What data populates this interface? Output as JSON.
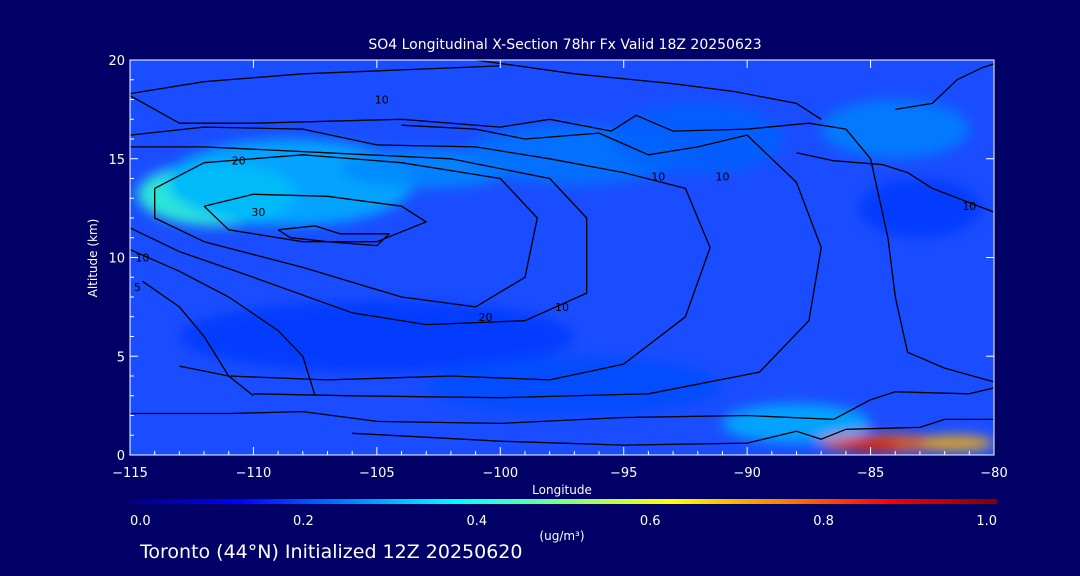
{
  "chart_data": {
    "type": "heatmap",
    "title": "SO4 Longitudinal X-Section 78hr  Fx Valid 18Z 20250623",
    "xlabel": "Longitude",
    "ylabel": "Altitude (km)",
    "xlim": [
      -115,
      -80
    ],
    "ylim": [
      0,
      20
    ],
    "x_ticks": [
      -115,
      -110,
      -105,
      -100,
      -95,
      -90,
      -85,
      -80
    ],
    "x_tick_labels": [
      "−115",
      "−110",
      "−105",
      "−100",
      "−95",
      "−90",
      "−85",
      "−80"
    ],
    "y_ticks": [
      0,
      5,
      10,
      15,
      20
    ],
    "y_tick_labels": [
      "0",
      "5",
      "10",
      "15",
      "20"
    ],
    "colorbar": {
      "label": "(ug/m³)",
      "range": [
        0.0,
        1.0
      ],
      "ticks": [
        0.0,
        0.2,
        0.4,
        0.6,
        0.8,
        1.0
      ],
      "tick_labels": [
        "0.0",
        "0.2",
        "0.4",
        "0.6",
        "0.8",
        "1.0"
      ],
      "colors": [
        "#000080",
        "#0000ff",
        "#0080ff",
        "#00ffff",
        "#80ff80",
        "#ffff00",
        "#ff8000",
        "#ff0000",
        "#800000"
      ]
    },
    "fill_blobs": [
      {
        "lon": -111.5,
        "alt": 13.2,
        "value": 0.42,
        "spread_lon": 3.2,
        "spread_alt": 1.6
      },
      {
        "lon": -108.5,
        "alt": 13.8,
        "value": 0.3,
        "spread_lon": 5.0,
        "spread_alt": 2.2
      },
      {
        "lon": -103.0,
        "alt": 14.5,
        "value": 0.26,
        "spread_lon": 3.5,
        "spread_alt": 1.0
      },
      {
        "lon": -97.0,
        "alt": 15.2,
        "value": 0.24,
        "spread_lon": 4.5,
        "spread_alt": 1.5
      },
      {
        "lon": -92.0,
        "alt": 16.0,
        "value": 0.22,
        "spread_lon": 3.5,
        "spread_alt": 1.8
      },
      {
        "lon": -84.0,
        "alt": 16.5,
        "value": 0.25,
        "spread_lon": 3.0,
        "spread_alt": 1.5
      },
      {
        "lon": -83.0,
        "alt": 12.5,
        "value": 0.18,
        "spread_lon": 2.5,
        "spread_alt": 1.5
      },
      {
        "lon": -105.0,
        "alt": 6.0,
        "value": 0.18,
        "spread_lon": 8.0,
        "spread_alt": 1.8
      },
      {
        "lon": -97.0,
        "alt": 3.5,
        "value": 0.2,
        "spread_lon": 6.0,
        "spread_alt": 1.5
      },
      {
        "lon": -88.0,
        "alt": 1.6,
        "value": 0.3,
        "spread_lon": 3.0,
        "spread_alt": 1.0
      },
      {
        "lon": -84.5,
        "alt": 0.6,
        "value": 0.78,
        "spread_lon": 2.6,
        "spread_alt": 0.45
      },
      {
        "lon": -85.0,
        "alt": 0.5,
        "value": 0.92,
        "spread_lon": 1.2,
        "spread_alt": 0.3
      },
      {
        "lon": -81.5,
        "alt": 0.6,
        "value": 0.7,
        "spread_lon": 1.5,
        "spread_alt": 0.4
      }
    ],
    "contours": [
      {
        "label": "30",
        "label_at": [
          -109.8,
          12.3
        ],
        "points": [
          [
            -112,
            12.6
          ],
          [
            -110,
            13.2
          ],
          [
            -107,
            13.1
          ],
          [
            -104,
            12.6
          ],
          [
            -103,
            11.8
          ],
          [
            -105,
            10.8
          ],
          [
            -108,
            10.8
          ],
          [
            -111,
            11.4
          ],
          [
            -112,
            12.6
          ]
        ]
      },
      {
        "label": "",
        "label_at": null,
        "points": [
          [
            -109,
            11.4
          ],
          [
            -107.5,
            11.6
          ],
          [
            -106.5,
            11.2
          ],
          [
            -104.5,
            11.2
          ],
          [
            -105,
            10.6
          ],
          [
            -107,
            10.8
          ],
          [
            -108.5,
            11.0
          ],
          [
            -109,
            11.4
          ]
        ]
      },
      {
        "label": "20",
        "label_at": [
          -110.6,
          14.9
        ],
        "points": [
          [
            -114,
            13.5
          ],
          [
            -112,
            14.8
          ],
          [
            -108,
            15.2
          ],
          [
            -104,
            14.8
          ],
          [
            -100,
            14.0
          ],
          [
            -98.5,
            12.0
          ],
          [
            -99,
            9.0
          ],
          [
            -101,
            7.5
          ],
          [
            -104,
            8.0
          ],
          [
            -108,
            9.5
          ],
          [
            -112,
            10.8
          ],
          [
            -114,
            12.0
          ],
          [
            -114,
            13.5
          ]
        ]
      },
      {
        "label": "20",
        "label_at": [
          -100.6,
          7.0
        ],
        "points": [
          [
            -115,
            11.5
          ],
          [
            -113,
            10.3
          ],
          [
            -110,
            9.0
          ],
          [
            -106,
            7.2
          ],
          [
            -103,
            6.6
          ],
          [
            -99,
            6.8
          ],
          [
            -96.5,
            8.2
          ],
          [
            -96.5,
            12.0
          ],
          [
            -98,
            14.0
          ],
          [
            -102,
            15.0
          ],
          [
            -107,
            15.3
          ],
          [
            -112,
            15.6
          ],
          [
            -115,
            15.6
          ]
        ]
      },
      {
        "label": "10",
        "label_at": [
          -104.8,
          18.0
        ],
        "points": [
          [
            -115,
            18.3
          ],
          [
            -112,
            18.9
          ],
          [
            -108,
            19.3
          ],
          [
            -104,
            19.5
          ],
          [
            -100,
            19.7
          ]
        ]
      },
      {
        "label": "10",
        "label_at": [
          -91.0,
          14.1
        ],
        "points": [
          [
            -115,
            16.2
          ],
          [
            -112,
            16.6
          ],
          [
            -108,
            16.5
          ],
          [
            -105,
            15.7
          ],
          [
            -101,
            15.6
          ],
          [
            -98,
            15.0
          ],
          [
            -95,
            14.3
          ],
          [
            -92.5,
            13.5
          ],
          [
            -91.5,
            10.5
          ],
          [
            -92.5,
            7.0
          ],
          [
            -95,
            4.6
          ],
          [
            -98,
            3.8
          ],
          [
            -102,
            4.0
          ],
          [
            -107,
            3.8
          ],
          [
            -111,
            4.0
          ],
          [
            -113,
            4.5
          ]
        ]
      },
      {
        "label": "10",
        "label_at": [
          -114.5,
          10.0
        ],
        "points": [
          [
            -115,
            10.4
          ],
          [
            -113,
            9.3
          ],
          [
            -111,
            8.0
          ],
          [
            -109,
            6.3
          ],
          [
            -108,
            5.0
          ],
          [
            -107.5,
            3.0
          ]
        ]
      },
      {
        "label": "5",
        "label_at": [
          -114.7,
          8.5
        ],
        "points": [
          [
            -114.5,
            8.8
          ],
          [
            -113,
            7.5
          ],
          [
            -112,
            6.0
          ],
          [
            -111,
            4.0
          ],
          [
            -110,
            3.0
          ]
        ]
      },
      {
        "label": "",
        "label_at": null,
        "points": [
          [
            -104,
            16.7
          ],
          [
            -101,
            16.5
          ],
          [
            -99,
            16.0
          ],
          [
            -96,
            16.3
          ],
          [
            -94,
            15.2
          ],
          [
            -92,
            15.6
          ],
          [
            -90,
            16.2
          ],
          [
            -88,
            13.8
          ],
          [
            -87,
            10.5
          ],
          [
            -87.5,
            6.8
          ],
          [
            -89.5,
            4.2
          ],
          [
            -94,
            3.1
          ],
          [
            -100,
            2.9
          ],
          [
            -106,
            3.0
          ],
          [
            -110,
            3.1
          ]
        ]
      },
      {
        "label": "",
        "label_at": null,
        "points": [
          [
            -115,
            18.2
          ],
          [
            -113,
            16.8
          ],
          [
            -110,
            16.8
          ],
          [
            -104,
            17.0
          ],
          [
            -100,
            16.6
          ],
          [
            -98,
            17.0
          ],
          [
            -95.5,
            16.4
          ],
          [
            -94.5,
            17.2
          ],
          [
            -93,
            16.4
          ],
          [
            -90,
            16.5
          ],
          [
            -87.5,
            16.8
          ],
          [
            -86,
            16.5
          ],
          [
            -85,
            15.0
          ],
          [
            -84.3,
            11.0
          ],
          [
            -84,
            8.0
          ],
          [
            -83.5,
            5.2
          ],
          [
            -82,
            4.4
          ],
          [
            -80,
            3.7
          ]
        ]
      },
      {
        "label": "",
        "label_at": null,
        "points": [
          [
            -115,
            2.1
          ],
          [
            -111,
            2.1
          ],
          [
            -108,
            2.2
          ],
          [
            -105,
            1.7
          ],
          [
            -100,
            1.6
          ],
          [
            -95,
            1.9
          ],
          [
            -90,
            2.0
          ],
          [
            -86.5,
            1.8
          ],
          [
            -85,
            2.8
          ],
          [
            -84,
            3.2
          ],
          [
            -81,
            3.1
          ],
          [
            -80,
            3.4
          ]
        ]
      },
      {
        "label": "",
        "label_at": null,
        "points": [
          [
            -106,
            1.1
          ],
          [
            -100,
            0.7
          ],
          [
            -95,
            0.5
          ],
          [
            -90,
            0.6
          ],
          [
            -88,
            1.2
          ],
          [
            -87,
            0.8
          ],
          [
            -86,
            1.3
          ],
          [
            -83,
            1.4
          ],
          [
            -82,
            1.8
          ],
          [
            -80,
            1.8
          ]
        ]
      },
      {
        "label": "",
        "label_at": null,
        "points": [
          [
            -101,
            20.0
          ],
          [
            -97,
            19.3
          ],
          [
            -93,
            18.8
          ],
          [
            -90.5,
            18.4
          ],
          [
            -88,
            17.8
          ],
          [
            -87,
            17.0
          ]
        ]
      },
      {
        "label": "",
        "label_at": null,
        "points": [
          [
            -84,
            17.5
          ],
          [
            -82.5,
            17.8
          ],
          [
            -81.5,
            19.0
          ],
          [
            -80.5,
            19.6
          ],
          [
            -80,
            19.8
          ]
        ]
      },
      {
        "label": "",
        "label_at": null,
        "points": [
          [
            -88,
            15.3
          ],
          [
            -86.5,
            14.9
          ],
          [
            -84.5,
            14.7
          ],
          [
            -83.5,
            14.3
          ],
          [
            -82.5,
            13.5
          ],
          [
            -80,
            12.3
          ]
        ]
      },
      {
        "label": "10",
        "label_at": [
          -97.5,
          7.5
        ],
        "points": [
          [
            -97,
            7.5
          ],
          [
            -97,
            7.5
          ]
        ]
      },
      {
        "label": "10",
        "label_at": [
          -81.0,
          12.6
        ],
        "points": [
          [
            -81,
            12.6
          ],
          [
            -81,
            12.6
          ]
        ]
      },
      {
        "label": "10",
        "label_at": [
          -93.6,
          14.1
        ],
        "points": [
          [
            -93.6,
            14.1
          ],
          [
            -93.6,
            14.1
          ]
        ]
      }
    ],
    "footer": "Toronto (44°N) Initialized 12Z 20250620"
  }
}
